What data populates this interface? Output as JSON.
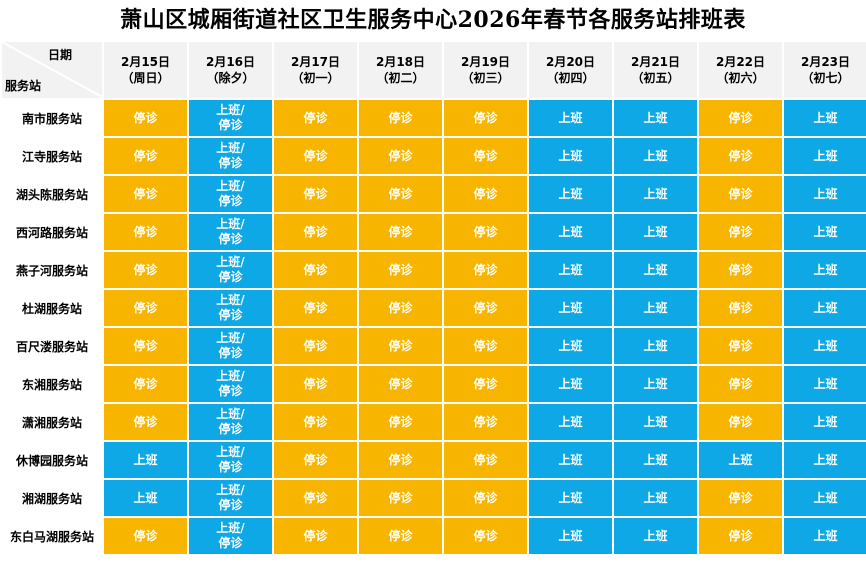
{
  "title": "萧山区城厢街道社区卫生服务中心2026年春节各服务站排班表",
  "corner": {
    "top_label": "日期",
    "bottom_label": "服务站"
  },
  "colors": {
    "closed": "#f7b500",
    "work": "#0fa8e6",
    "header_bg": "#f2f2f2"
  },
  "dates": [
    {
      "date": "2月15日",
      "day": "（周日）"
    },
    {
      "date": "2月16日",
      "day": "（除夕）"
    },
    {
      "date": "2月17日",
      "day": "（初一）"
    },
    {
      "date": "2月18日",
      "day": "（初二）"
    },
    {
      "date": "2月19日",
      "day": "（初三）"
    },
    {
      "date": "2月20日",
      "day": "（初四）"
    },
    {
      "date": "2月21日",
      "day": "（初五）"
    },
    {
      "date": "2月22日",
      "day": "（初六）"
    },
    {
      "date": "2月23日",
      "day": "（初七）"
    }
  ],
  "legend_text": {
    "closed": "停诊",
    "work": "上班",
    "mix_line1": "上班/",
    "mix_line2": "停诊"
  },
  "rows": [
    {
      "station": "南市服务站",
      "status": [
        "closed",
        "mix",
        "closed",
        "closed",
        "closed",
        "work",
        "work",
        "closed",
        "work"
      ]
    },
    {
      "station": "江寺服务站",
      "status": [
        "closed",
        "mix",
        "closed",
        "closed",
        "closed",
        "work",
        "work",
        "closed",
        "work"
      ]
    },
    {
      "station": "湖头陈服务站",
      "status": [
        "closed",
        "mix",
        "closed",
        "closed",
        "closed",
        "work",
        "work",
        "closed",
        "work"
      ]
    },
    {
      "station": "西河路服务站",
      "status": [
        "closed",
        "mix",
        "closed",
        "closed",
        "closed",
        "work",
        "work",
        "closed",
        "work"
      ]
    },
    {
      "station": "燕子河服务站",
      "status": [
        "closed",
        "mix",
        "closed",
        "closed",
        "closed",
        "work",
        "work",
        "closed",
        "work"
      ]
    },
    {
      "station": "杜湖服务站",
      "status": [
        "closed",
        "mix",
        "closed",
        "closed",
        "closed",
        "work",
        "work",
        "closed",
        "work"
      ]
    },
    {
      "station": "百尺溇服务站",
      "status": [
        "closed",
        "mix",
        "closed",
        "closed",
        "closed",
        "work",
        "work",
        "closed",
        "work"
      ]
    },
    {
      "station": "东湘服务站",
      "status": [
        "closed",
        "mix",
        "closed",
        "closed",
        "closed",
        "work",
        "work",
        "closed",
        "work"
      ]
    },
    {
      "station": "潇湘服务站",
      "status": [
        "closed",
        "mix",
        "closed",
        "closed",
        "closed",
        "work",
        "work",
        "closed",
        "work"
      ]
    },
    {
      "station": "休博园服务站",
      "status": [
        "work",
        "mix",
        "closed",
        "closed",
        "closed",
        "work",
        "work",
        "work",
        "work"
      ]
    },
    {
      "station": "湘湖服务站",
      "status": [
        "work",
        "mix",
        "closed",
        "closed",
        "closed",
        "work",
        "work",
        "closed",
        "work"
      ]
    },
    {
      "station": "东白马湖服务站",
      "status": [
        "closed",
        "mix",
        "closed",
        "closed",
        "closed",
        "work",
        "work",
        "closed",
        "work"
      ]
    }
  ]
}
